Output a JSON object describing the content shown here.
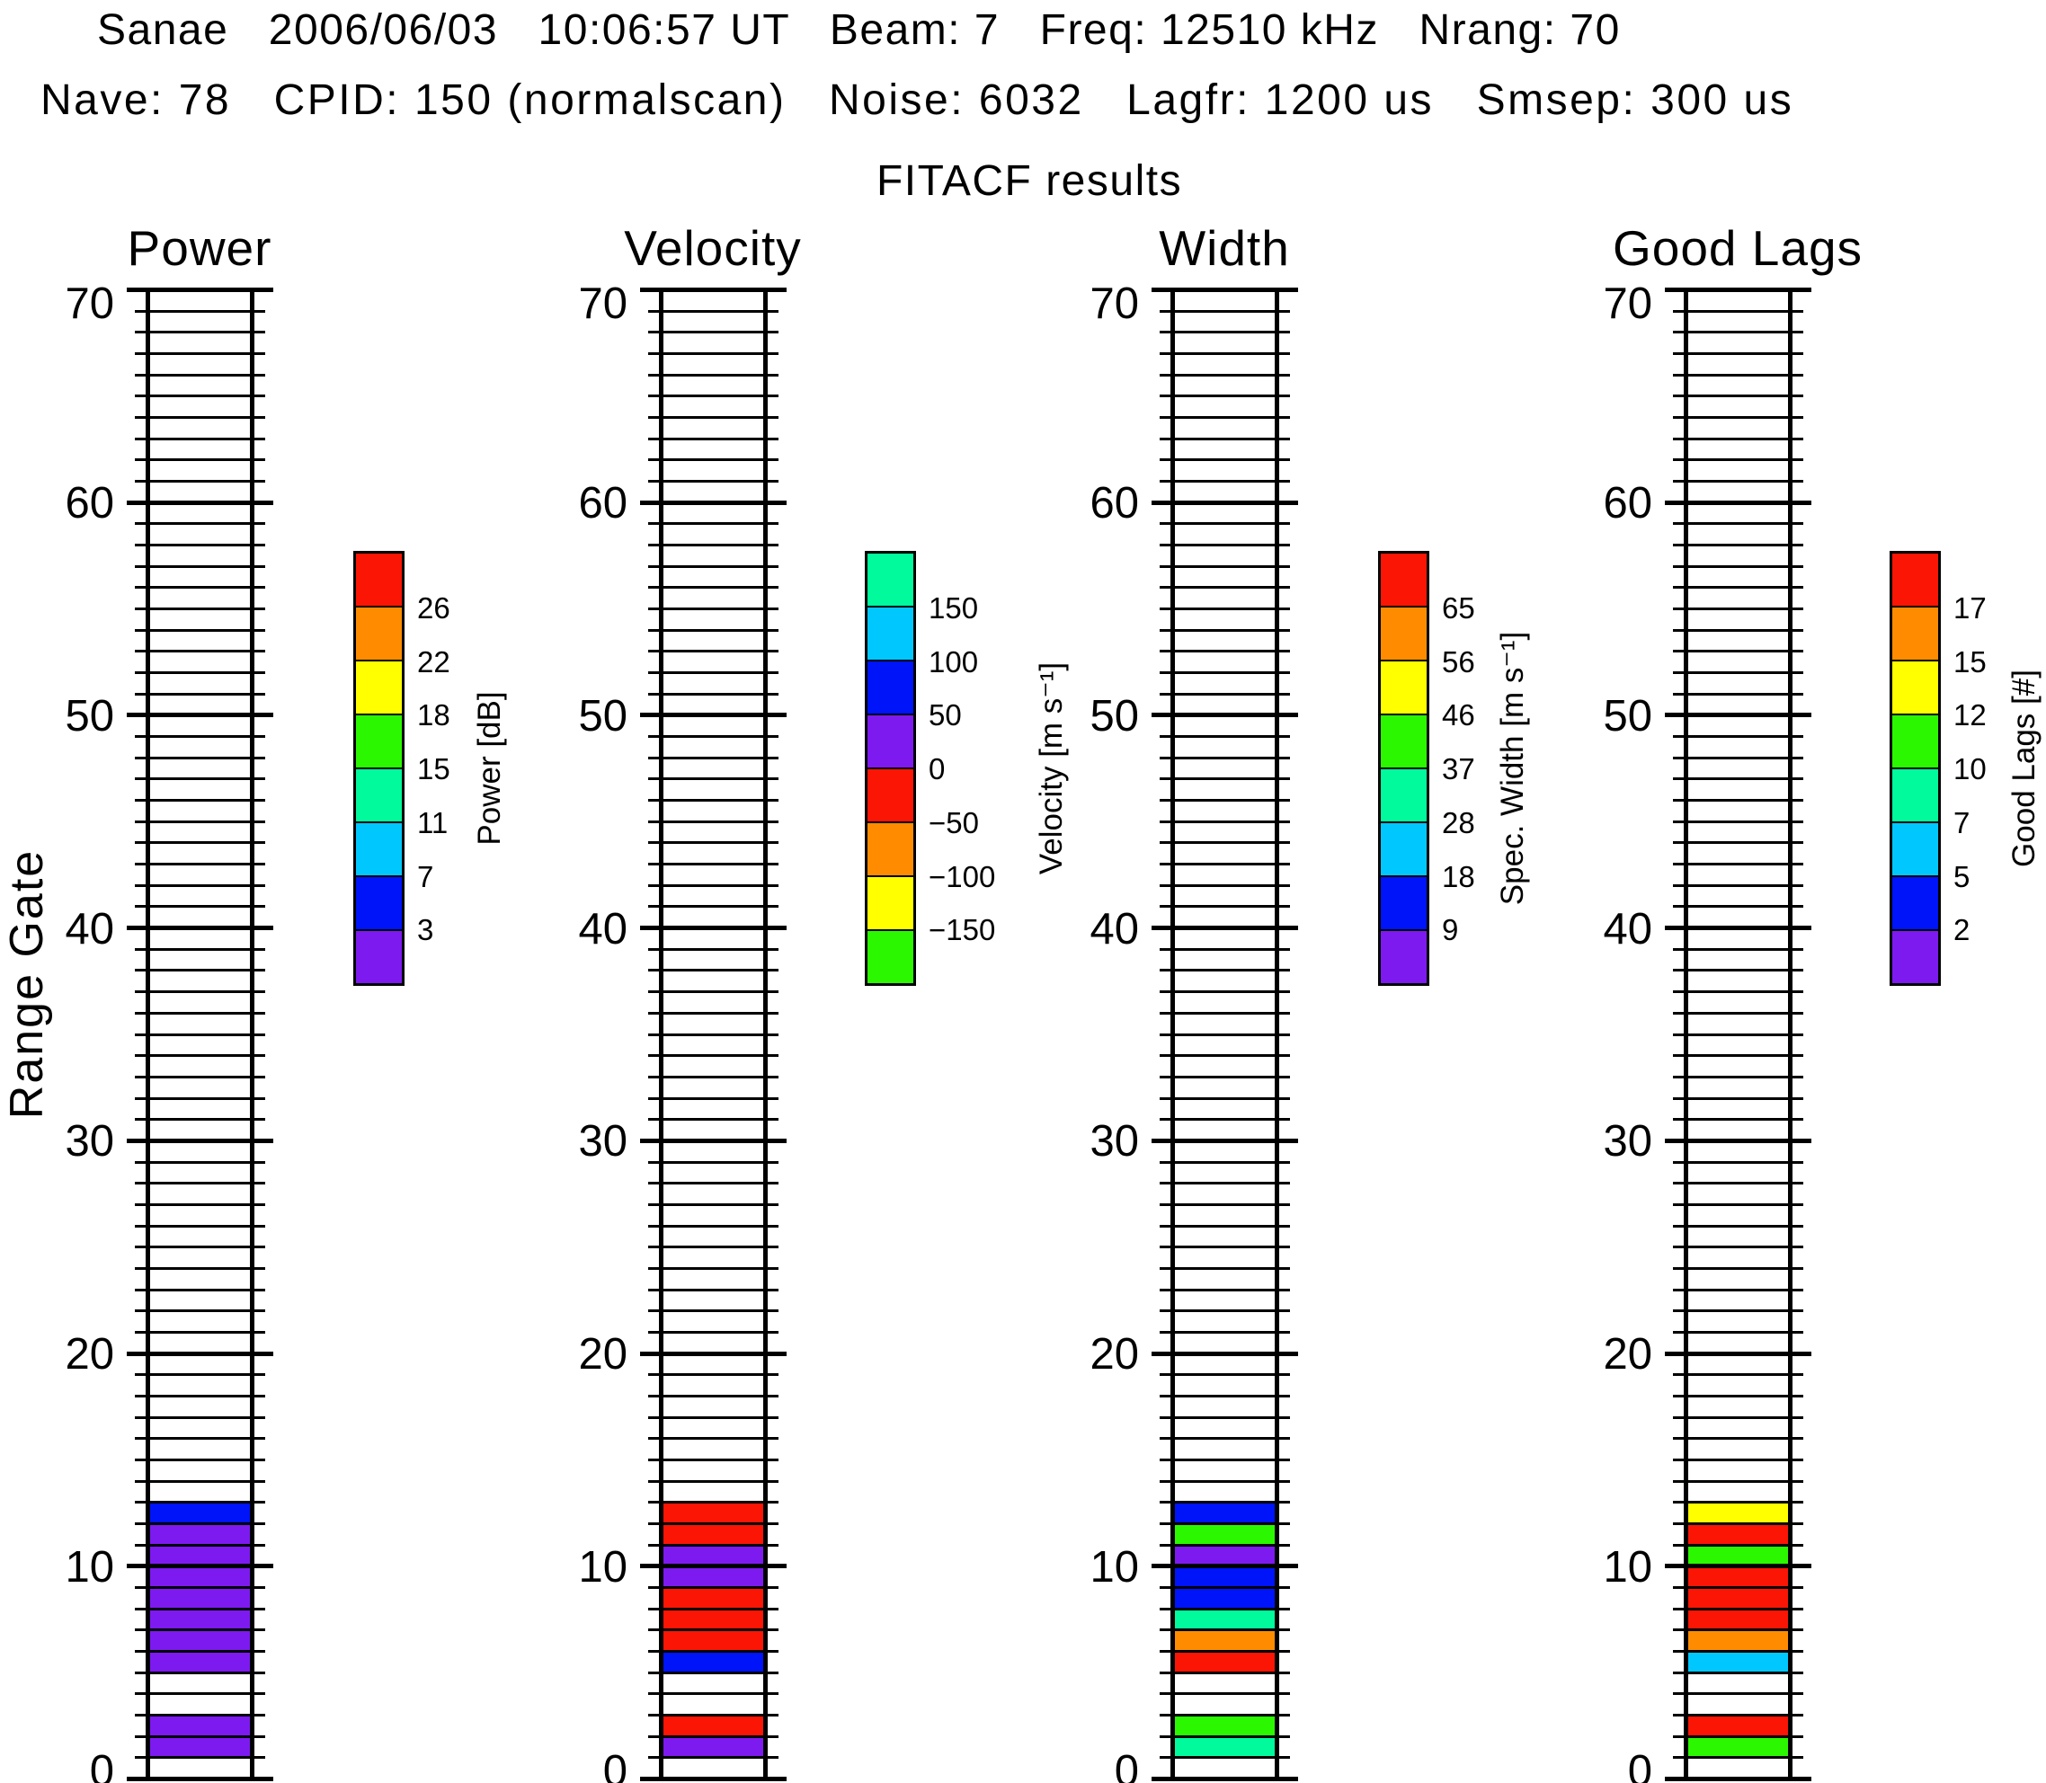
{
  "header": {
    "line1": "Sanae   2006/06/03   10:06:57 UT   Beam: 7   Freq: 12510 kHz   Nrang: 70",
    "line2": "Nave: 78   CPID: 150 (normalscan)   Noise: 6032   Lagfr: 1200 us   Smsep: 300 us",
    "title": "FITACF results"
  },
  "y_axis": {
    "label": "Range Gate",
    "tick_values": [
      0,
      10,
      20,
      30,
      40,
      50,
      60,
      70
    ],
    "gate_min": 0,
    "gate_max": 70
  },
  "palette": {
    "red": "#FA1505",
    "orange": "#FF8C00",
    "yellow": "#FFFF00",
    "green": "#2BF800",
    "mint": "#00FA9C",
    "cyan": "#00C8FF",
    "blue": "#0014FA",
    "purple": "#7D1AF0",
    "empty": "#FFFFFF",
    "frame": "#000000"
  },
  "panels": [
    {
      "id": "power",
      "title": "Power",
      "colorbar": {
        "title": "Power [dB]",
        "tick_labels": [
          "26",
          "22",
          "18",
          "15",
          "11",
          "7",
          "3"
        ],
        "colors_top_to_bottom": [
          "red",
          "orange",
          "yellow",
          "green",
          "mint",
          "cyan",
          "blue",
          "purple"
        ]
      },
      "cells": [
        {
          "gate": 1,
          "color": "purple"
        },
        {
          "gate": 2,
          "color": "purple"
        },
        {
          "gate": 5,
          "color": "purple"
        },
        {
          "gate": 6,
          "color": "purple"
        },
        {
          "gate": 7,
          "color": "purple"
        },
        {
          "gate": 8,
          "color": "purple"
        },
        {
          "gate": 9,
          "color": "purple"
        },
        {
          "gate": 10,
          "color": "purple"
        },
        {
          "gate": 11,
          "color": "purple"
        },
        {
          "gate": 12,
          "color": "blue"
        }
      ]
    },
    {
      "id": "velocity",
      "title": "Velocity",
      "colorbar": {
        "title": "Velocity [m s⁻¹]",
        "tick_labels": [
          "150",
          "100",
          "50",
          "0",
          "−50",
          "−100",
          "−150"
        ],
        "colors_top_to_bottom": [
          "mint",
          "cyan",
          "blue",
          "purple",
          "red",
          "orange",
          "yellow",
          "green"
        ]
      },
      "cells": [
        {
          "gate": 1,
          "color": "purple"
        },
        {
          "gate": 2,
          "color": "red"
        },
        {
          "gate": 5,
          "color": "blue"
        },
        {
          "gate": 6,
          "color": "red"
        },
        {
          "gate": 7,
          "color": "red"
        },
        {
          "gate": 8,
          "color": "red"
        },
        {
          "gate": 9,
          "color": "purple"
        },
        {
          "gate": 10,
          "color": "purple"
        },
        {
          "gate": 11,
          "color": "red"
        },
        {
          "gate": 12,
          "color": "red"
        }
      ]
    },
    {
      "id": "width",
      "title": "Width",
      "colorbar": {
        "title": "Spec. Width [m s⁻¹]",
        "tick_labels": [
          "65",
          "56",
          "46",
          "37",
          "28",
          "18",
          "9"
        ],
        "colors_top_to_bottom": [
          "red",
          "orange",
          "yellow",
          "green",
          "mint",
          "cyan",
          "blue",
          "purple"
        ]
      },
      "cells": [
        {
          "gate": 1,
          "color": "mint"
        },
        {
          "gate": 2,
          "color": "green"
        },
        {
          "gate": 5,
          "color": "red"
        },
        {
          "gate": 6,
          "color": "orange"
        },
        {
          "gate": 7,
          "color": "mint"
        },
        {
          "gate": 8,
          "color": "blue"
        },
        {
          "gate": 9,
          "color": "blue"
        },
        {
          "gate": 10,
          "color": "purple"
        },
        {
          "gate": 11,
          "color": "green"
        },
        {
          "gate": 12,
          "color": "blue"
        }
      ]
    },
    {
      "id": "goodlags",
      "title": "Good Lags",
      "colorbar": {
        "title": "Good Lags [#]",
        "tick_labels": [
          "17",
          "15",
          "12",
          "10",
          "7",
          "5",
          "2"
        ],
        "colors_top_to_bottom": [
          "red",
          "orange",
          "yellow",
          "green",
          "mint",
          "cyan",
          "blue",
          "purple"
        ]
      },
      "cells": [
        {
          "gate": 1,
          "color": "green"
        },
        {
          "gate": 2,
          "color": "red"
        },
        {
          "gate": 5,
          "color": "cyan"
        },
        {
          "gate": 6,
          "color": "orange"
        },
        {
          "gate": 7,
          "color": "red"
        },
        {
          "gate": 8,
          "color": "red"
        },
        {
          "gate": 9,
          "color": "red"
        },
        {
          "gate": 10,
          "color": "green"
        },
        {
          "gate": 11,
          "color": "red"
        },
        {
          "gate": 12,
          "color": "yellow"
        }
      ]
    }
  ],
  "chart_data": {
    "type": "heatmap",
    "title": "FITACF results",
    "station_line": "Sanae 2006/06/03 10:06:57 UT Beam: 7 Freq: 12510 kHz Nrang: 70",
    "params_line": "Nave: 78 CPID: 150 (normalscan) Noise: 6032 Lagfr: 1200 us Smsep: 300 us",
    "ylabel": "Range Gate",
    "ylim": [
      0,
      70
    ],
    "grid": true,
    "legend_position": "colorbar right of each column",
    "columns": [
      {
        "name": "Power",
        "unit": "dB",
        "colorbar_ticks": [
          26,
          22,
          18,
          15,
          11,
          7,
          3
        ],
        "data": [
          {
            "gate": 1,
            "value_bin": "<3"
          },
          {
            "gate": 2,
            "value_bin": "<3"
          },
          {
            "gate": 5,
            "value_bin": "<3"
          },
          {
            "gate": 6,
            "value_bin": "<3"
          },
          {
            "gate": 7,
            "value_bin": "<3"
          },
          {
            "gate": 8,
            "value_bin": "<3"
          },
          {
            "gate": 9,
            "value_bin": "<3"
          },
          {
            "gate": 10,
            "value_bin": "<3"
          },
          {
            "gate": 11,
            "value_bin": "<3"
          },
          {
            "gate": 12,
            "value_bin": "3-7"
          }
        ]
      },
      {
        "name": "Velocity",
        "unit": "m/s",
        "colorbar_ticks": [
          150,
          100,
          50,
          0,
          -50,
          -100,
          -150
        ],
        "data": [
          {
            "gate": 1,
            "value_bin": "0 to 50"
          },
          {
            "gate": 2,
            "value_bin": "-50 to 0"
          },
          {
            "gate": 5,
            "value_bin": "50 to 100"
          },
          {
            "gate": 6,
            "value_bin": "-50 to 0"
          },
          {
            "gate": 7,
            "value_bin": "-50 to 0"
          },
          {
            "gate": 8,
            "value_bin": "-50 to 0"
          },
          {
            "gate": 9,
            "value_bin": "0 to 50"
          },
          {
            "gate": 10,
            "value_bin": "0 to 50"
          },
          {
            "gate": 11,
            "value_bin": "-50 to 0"
          },
          {
            "gate": 12,
            "value_bin": "-50 to 0"
          }
        ]
      },
      {
        "name": "Spec. Width",
        "unit": "m/s",
        "colorbar_ticks": [
          65,
          56,
          46,
          37,
          28,
          18,
          9
        ],
        "data": [
          {
            "gate": 1,
            "value_bin": "28-37"
          },
          {
            "gate": 2,
            "value_bin": "37-46"
          },
          {
            "gate": 5,
            "value_bin": ">65"
          },
          {
            "gate": 6,
            "value_bin": "56-65"
          },
          {
            "gate": 7,
            "value_bin": "28-37"
          },
          {
            "gate": 8,
            "value_bin": "9-18"
          },
          {
            "gate": 9,
            "value_bin": "9-18"
          },
          {
            "gate": 10,
            "value_bin": "<9"
          },
          {
            "gate": 11,
            "value_bin": "37-46"
          },
          {
            "gate": 12,
            "value_bin": "9-18"
          }
        ]
      },
      {
        "name": "Good Lags",
        "unit": "#",
        "colorbar_ticks": [
          17,
          15,
          12,
          10,
          7,
          5,
          2
        ],
        "data": [
          {
            "gate": 1,
            "value_bin": "10-12"
          },
          {
            "gate": 2,
            "value_bin": ">17"
          },
          {
            "gate": 5,
            "value_bin": "5-7"
          },
          {
            "gate": 6,
            "value_bin": "15-17"
          },
          {
            "gate": 7,
            "value_bin": ">17"
          },
          {
            "gate": 8,
            "value_bin": ">17"
          },
          {
            "gate": 9,
            "value_bin": ">17"
          },
          {
            "gate": 10,
            "value_bin": "10-12"
          },
          {
            "gate": 11,
            "value_bin": ">17"
          },
          {
            "gate": 12,
            "value_bin": "12-15"
          }
        ]
      }
    ]
  }
}
